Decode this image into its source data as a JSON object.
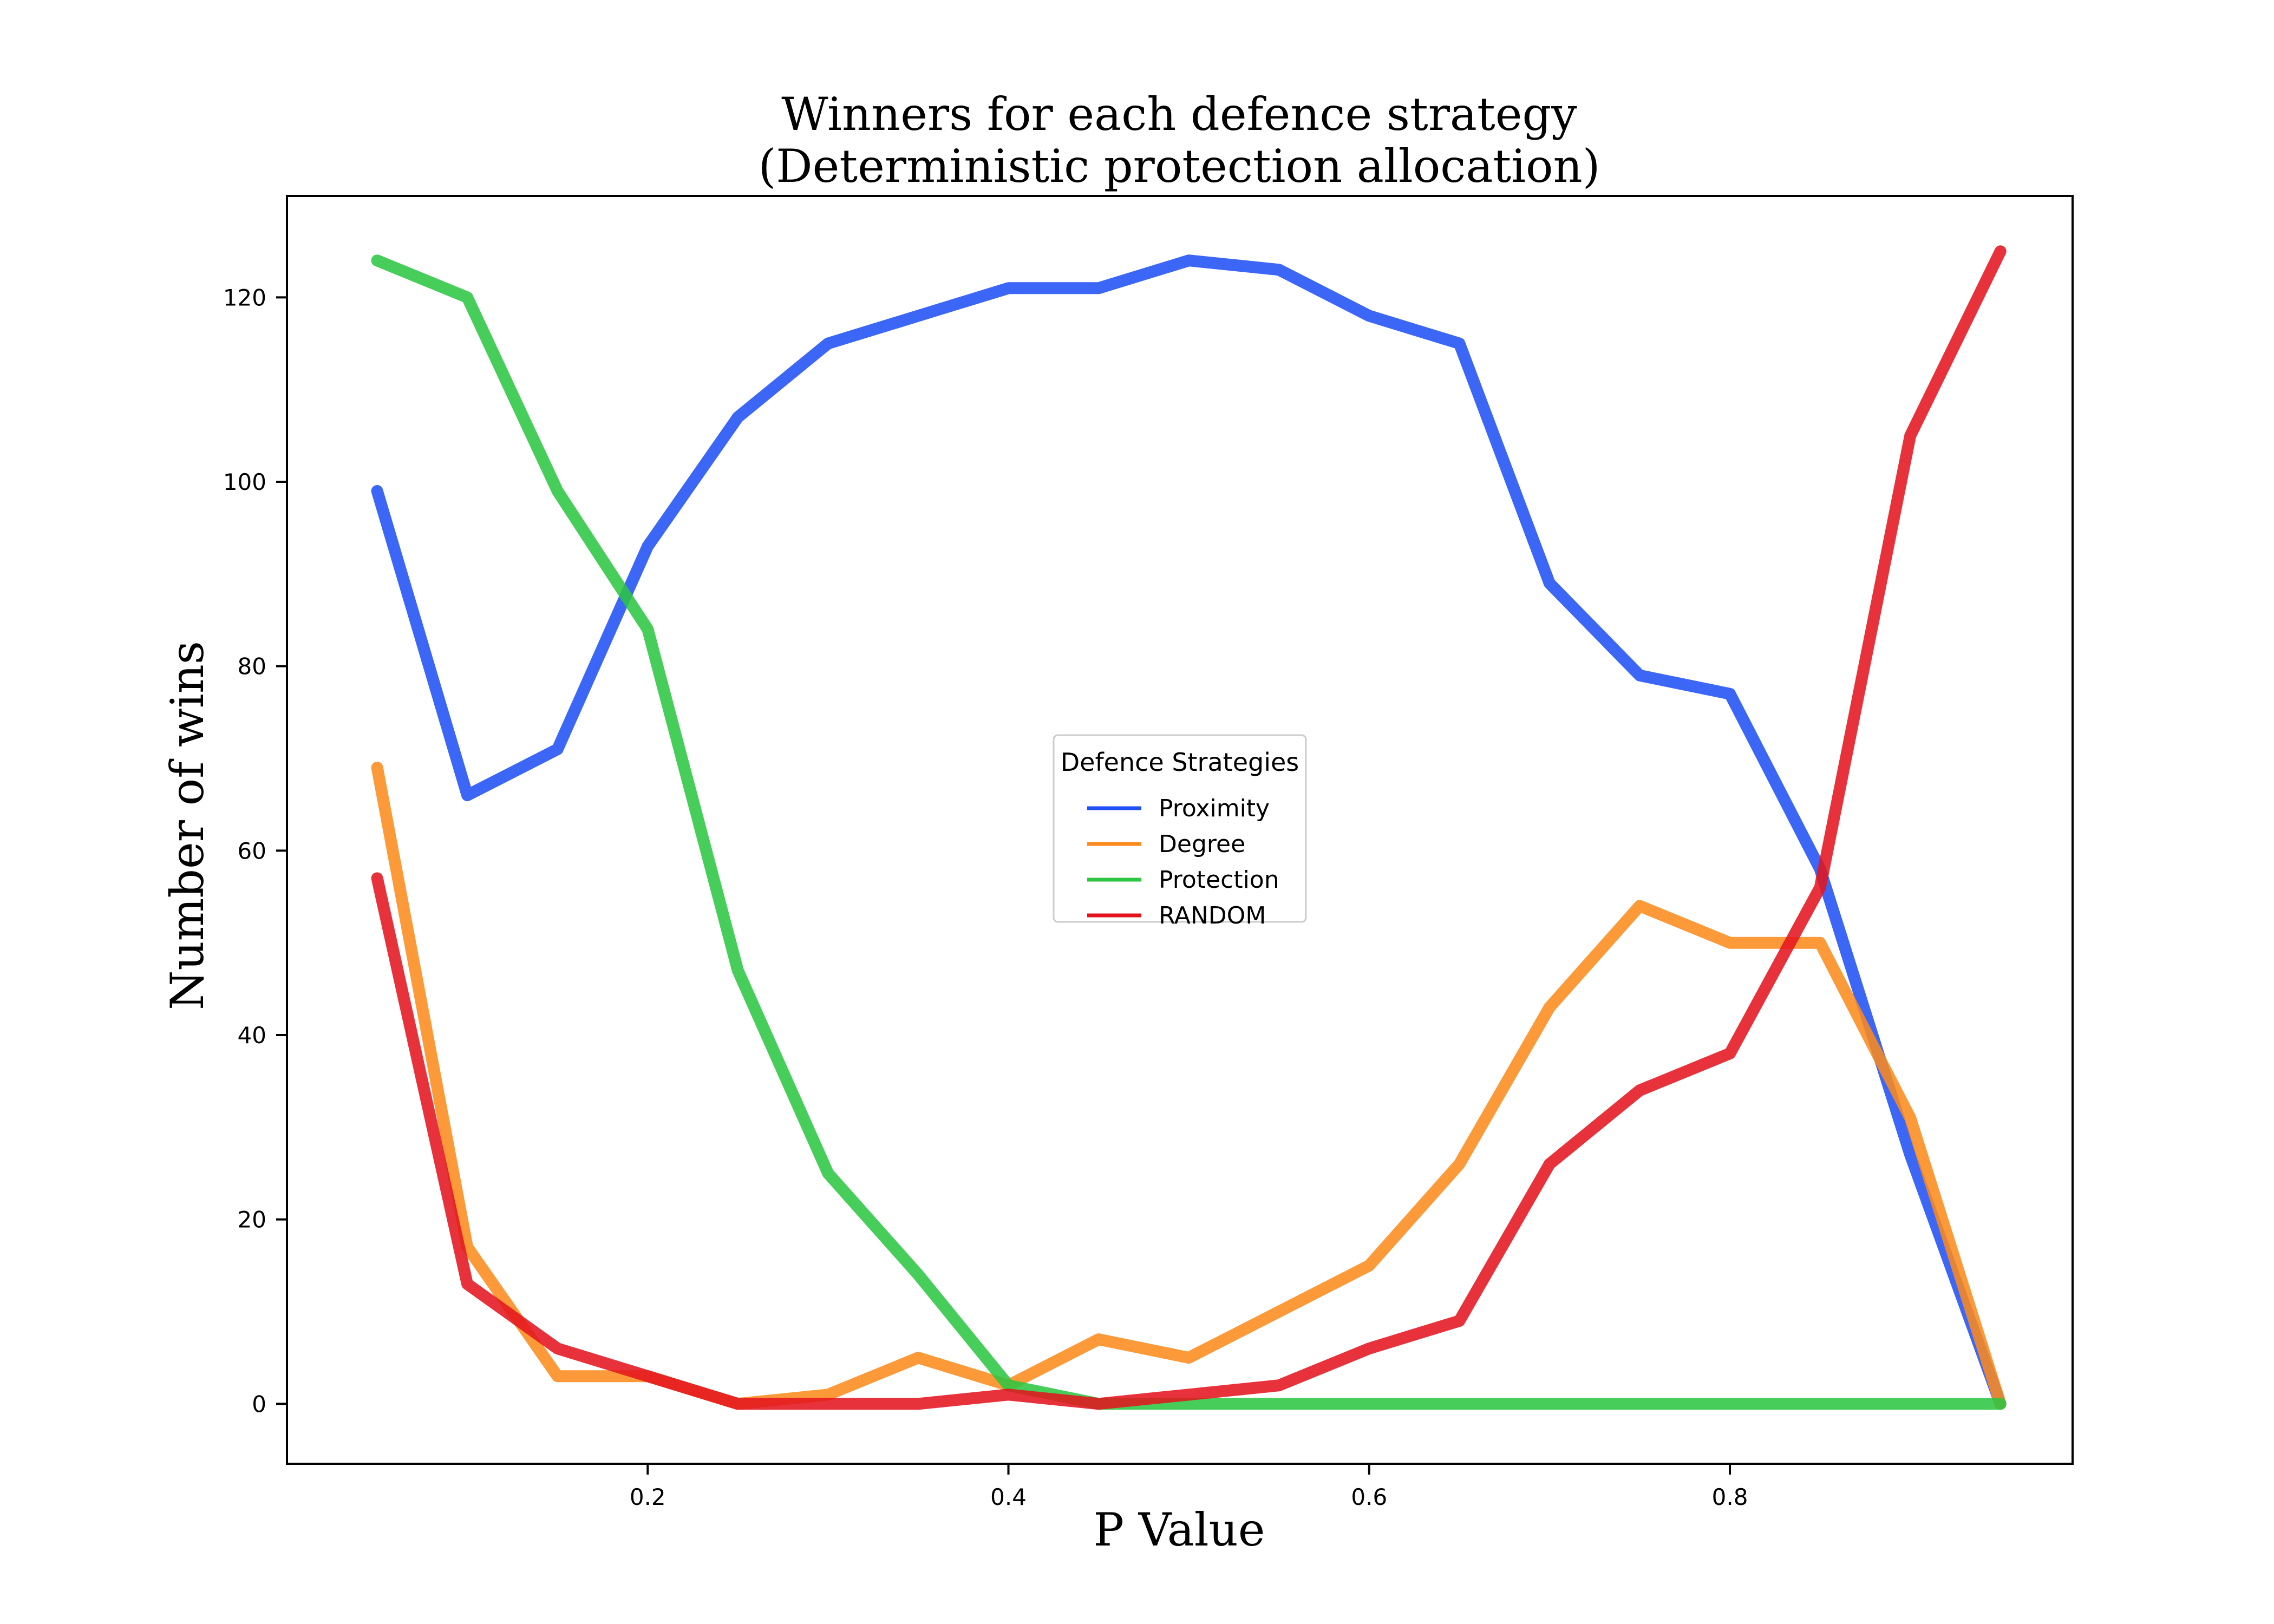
{
  "chart_data": {
    "type": "line",
    "title": [
      "Winners for each defence strategy",
      "(Deterministic protection allocation)"
    ],
    "xlabel": "P Value",
    "ylabel": "Number of wins",
    "xlim": [
      0.0,
      0.99
    ],
    "ylim": [
      -6.5,
      131
    ],
    "xticks": [
      {
        "value": 0.2,
        "label": "0.2"
      },
      {
        "value": 0.4,
        "label": "0.4"
      },
      {
        "value": 0.6,
        "label": "0.6"
      },
      {
        "value": 0.8,
        "label": "0.8"
      }
    ],
    "yticks": [
      {
        "value": 0,
        "label": "0"
      },
      {
        "value": 20,
        "label": "20"
      },
      {
        "value": 40,
        "label": "40"
      },
      {
        "value": 60,
        "label": "60"
      },
      {
        "value": 80,
        "label": "80"
      },
      {
        "value": 100,
        "label": "100"
      },
      {
        "value": 120,
        "label": "120"
      }
    ],
    "grid": false,
    "legend": {
      "title": "Defence Strategies",
      "placement": "center"
    },
    "x": [
      0.05,
      0.1,
      0.15,
      0.2,
      0.25,
      0.3,
      0.35,
      0.4,
      0.45,
      0.5,
      0.55,
      0.6,
      0.65,
      0.7,
      0.75,
      0.8,
      0.85,
      0.9,
      0.95
    ],
    "series": [
      {
        "name": "Proximity",
        "color": "#1f4ff5",
        "values": [
          99,
          66,
          71,
          93,
          107,
          115,
          118,
          121,
          121,
          124,
          123,
          118,
          115,
          89,
          79,
          77,
          58,
          27,
          0
        ]
      },
      {
        "name": "Degree",
        "color": "#fc8a1c",
        "values": [
          69,
          17,
          3,
          3,
          0,
          1,
          5,
          2,
          7,
          5,
          10,
          15,
          26,
          43,
          54,
          50,
          50,
          31,
          0
        ]
      },
      {
        "name": "Protection",
        "color": "#2cc642",
        "values": [
          124,
          120,
          99,
          84,
          47,
          25,
          14,
          2,
          0,
          0,
          0,
          0,
          0,
          0,
          0,
          0,
          0,
          0,
          0
        ]
      },
      {
        "name": "RANDOM",
        "color": "#e3131e",
        "values": [
          57,
          13,
          6,
          3,
          0,
          0,
          0,
          1,
          0,
          1,
          2,
          6,
          9,
          26,
          34,
          38,
          56,
          105,
          125
        ]
      }
    ]
  }
}
